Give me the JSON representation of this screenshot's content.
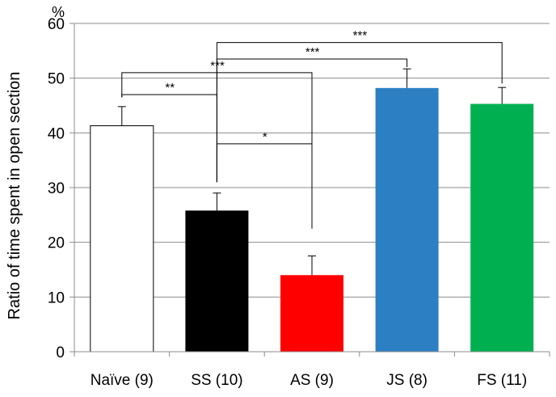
{
  "chart_data": {
    "type": "bar",
    "title": "",
    "xlabel": "",
    "ylabel": "Ratio of time spent in open section",
    "y_unit": "%",
    "ylim": [
      0,
      60
    ],
    "yticks": [
      0,
      10,
      20,
      30,
      40,
      50,
      60
    ],
    "grid": "horizontal",
    "legend": "none",
    "categories": [
      "Naïve (9)",
      "SS (10)",
      "AS (9)",
      "JS (8)",
      "FS (11)"
    ],
    "values": [
      41.3,
      25.8,
      14.0,
      48.2,
      45.3
    ],
    "errors": [
      3.5,
      3.2,
      3.5,
      3.5,
      3.0
    ],
    "colors": [
      "#ffffff",
      "#000000",
      "#ff0000",
      "#2c7fc3",
      "#00b050"
    ],
    "significance": [
      {
        "from": 0,
        "to": 1,
        "label": "**",
        "y": 47.0,
        "left_end": 46.5,
        "right_end": 46.5
      },
      {
        "from": 0,
        "to": 2,
        "label": "***",
        "y": 51.0,
        "left_end": 46.5,
        "right_end": 23.0
      },
      {
        "from": 1,
        "to": 2,
        "label": "*",
        "y": 38.0,
        "left_end": 31.0,
        "right_end": 22.5
      },
      {
        "from": 1,
        "to": 3,
        "label": "***",
        "y": 53.5,
        "left_end": 31.0,
        "right_end": 52.0
      },
      {
        "from": 1,
        "to": 4,
        "label": "***",
        "y": 56.5,
        "left_end": 31.0,
        "right_end": 49.0
      }
    ]
  }
}
